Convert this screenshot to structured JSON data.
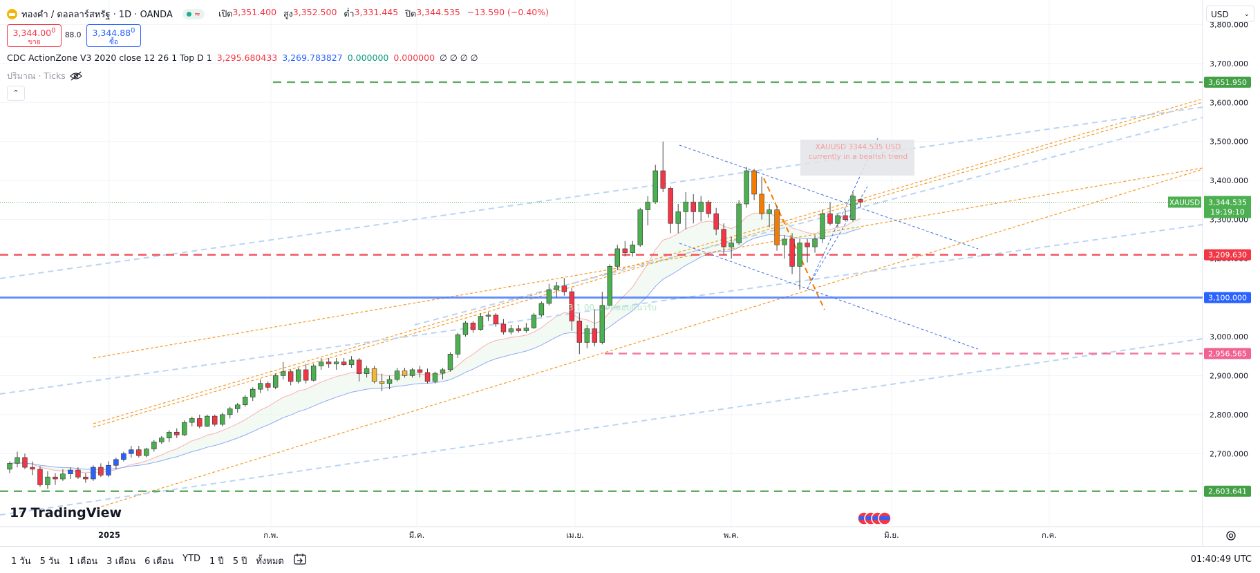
{
  "header": {
    "symbol_title": "ทองคำ / ดอลลาร์สหรัฐ · 1D · OANDA",
    "ohlc": [
      {
        "label": "เปิด",
        "value": "3,351.400"
      },
      {
        "label": "สูง",
        "value": "3,352.500"
      },
      {
        "label": "ต่ำ",
        "value": "3,331.445"
      },
      {
        "label": "ปิด",
        "value": "3,344.535"
      },
      {
        "label": "",
        "value": "−13.590 (−0.40%)"
      }
    ],
    "sell_price_main": "3,344.00",
    "sell_price_sup": "0",
    "sell_label": "ขาย",
    "spread": "88.0",
    "buy_price_main": "3,344.88",
    "buy_price_sup": "0",
    "buy_label": "ซื้อ",
    "currency": "USD"
  },
  "indicator": {
    "name": "CDC ActionZone V3 2020 close 12 26 1 Top D 1",
    "values": [
      {
        "text": "3,295.680433",
        "color": "#f23645"
      },
      {
        "text": "3,269.783827",
        "color": "#2962ff"
      },
      {
        "text": "0.000000",
        "color": "#089981"
      },
      {
        "text": "0.000000",
        "color": "#f23645"
      },
      {
        "text": "∅ ∅ ∅ ∅",
        "color": "#131722"
      }
    ]
  },
  "volume": {
    "label": "ปริมาณ · Ticks",
    "collapse": "^"
  },
  "chart_data": {
    "type": "candlestick",
    "symbol": "XAUUSD",
    "ylim": [
      2600,
      3800
    ],
    "y_ticks": [
      "2,700.000",
      "2,800.000",
      "2,900.000",
      "3,000.000",
      "3,100.000",
      "3,200.000",
      "3,300.000",
      "3,400.000",
      "3,500.000",
      "3,600.000",
      "3,700.000",
      "3,800.000"
    ],
    "x_ticks": [
      "2025",
      "ก.พ.",
      "มี.ค.",
      "เม.ย.",
      "พ.ค.",
      "มิ.ย.",
      "ก.ค."
    ],
    "candles": [
      {
        "o": 2660,
        "h": 2680,
        "l": 2650,
        "c": 2675
      },
      {
        "o": 2675,
        "h": 2705,
        "l": 2665,
        "c": 2690
      },
      {
        "o": 2690,
        "h": 2700,
        "l": 2660,
        "c": 2665
      },
      {
        "o": 2665,
        "h": 2680,
        "l": 2645,
        "c": 2660
      },
      {
        "o": 2660,
        "h": 2668,
        "l": 2615,
        "c": 2620
      },
      {
        "o": 2620,
        "h": 2655,
        "l": 2610,
        "c": 2640
      },
      {
        "o": 2640,
        "h": 2650,
        "l": 2620,
        "c": 2635
      },
      {
        "o": 2635,
        "h": 2660,
        "l": 2630,
        "c": 2648
      },
      {
        "o": 2648,
        "h": 2665,
        "l": 2635,
        "c": 2658
      },
      {
        "o": 2658,
        "h": 2665,
        "l": 2635,
        "c": 2640
      },
      {
        "o": 2640,
        "h": 2650,
        "l": 2625,
        "c": 2635
      },
      {
        "o": 2635,
        "h": 2670,
        "l": 2630,
        "c": 2665
      },
      {
        "o": 2665,
        "h": 2675,
        "l": 2640,
        "c": 2645
      },
      {
        "o": 2645,
        "h": 2680,
        "l": 2640,
        "c": 2670
      },
      {
        "o": 2670,
        "h": 2690,
        "l": 2660,
        "c": 2685
      },
      {
        "o": 2685,
        "h": 2705,
        "l": 2680,
        "c": 2700
      },
      {
        "o": 2700,
        "h": 2720,
        "l": 2690,
        "c": 2710
      },
      {
        "o": 2710,
        "h": 2720,
        "l": 2690,
        "c": 2695
      },
      {
        "o": 2695,
        "h": 2715,
        "l": 2690,
        "c": 2712
      },
      {
        "o": 2712,
        "h": 2735,
        "l": 2705,
        "c": 2730
      },
      {
        "o": 2730,
        "h": 2745,
        "l": 2725,
        "c": 2740
      },
      {
        "o": 2740,
        "h": 2760,
        "l": 2730,
        "c": 2755
      },
      {
        "o": 2755,
        "h": 2765,
        "l": 2740,
        "c": 2748
      },
      {
        "o": 2748,
        "h": 2785,
        "l": 2745,
        "c": 2780
      },
      {
        "o": 2780,
        "h": 2795,
        "l": 2770,
        "c": 2790
      },
      {
        "o": 2790,
        "h": 2800,
        "l": 2765,
        "c": 2770
      },
      {
        "o": 2770,
        "h": 2800,
        "l": 2768,
        "c": 2796
      },
      {
        "o": 2796,
        "h": 2800,
        "l": 2770,
        "c": 2775
      },
      {
        "o": 2775,
        "h": 2805,
        "l": 2770,
        "c": 2800
      },
      {
        "o": 2800,
        "h": 2820,
        "l": 2790,
        "c": 2815
      },
      {
        "o": 2815,
        "h": 2830,
        "l": 2805,
        "c": 2825
      },
      {
        "o": 2825,
        "h": 2850,
        "l": 2820,
        "c": 2845
      },
      {
        "o": 2845,
        "h": 2870,
        "l": 2835,
        "c": 2865
      },
      {
        "o": 2865,
        "h": 2890,
        "l": 2855,
        "c": 2880
      },
      {
        "o": 2880,
        "h": 2885,
        "l": 2860,
        "c": 2870
      },
      {
        "o": 2870,
        "h": 2905,
        "l": 2865,
        "c": 2900
      },
      {
        "o": 2900,
        "h": 2935,
        "l": 2890,
        "c": 2910
      },
      {
        "o": 2910,
        "h": 2915,
        "l": 2875,
        "c": 2885
      },
      {
        "o": 2885,
        "h": 2920,
        "l": 2880,
        "c": 2915
      },
      {
        "o": 2915,
        "h": 2930,
        "l": 2880,
        "c": 2888
      },
      {
        "o": 2888,
        "h": 2930,
        "l": 2885,
        "c": 2925
      },
      {
        "o": 2925,
        "h": 2945,
        "l": 2915,
        "c": 2935
      },
      {
        "o": 2935,
        "h": 2945,
        "l": 2920,
        "c": 2930
      },
      {
        "o": 2930,
        "h": 2945,
        "l": 2915,
        "c": 2935
      },
      {
        "o": 2935,
        "h": 2945,
        "l": 2925,
        "c": 2928
      },
      {
        "o": 2928,
        "h": 2950,
        "l": 2920,
        "c": 2940
      },
      {
        "o": 2940,
        "h": 2945,
        "l": 2885,
        "c": 2905
      },
      {
        "o": 2905,
        "h": 2925,
        "l": 2895,
        "c": 2918
      },
      {
        "o": 2918,
        "h": 2925,
        "l": 2880,
        "c": 2885
      },
      {
        "o": 2885,
        "h": 2905,
        "l": 2860,
        "c": 2880
      },
      {
        "o": 2880,
        "h": 2900,
        "l": 2865,
        "c": 2890
      },
      {
        "o": 2890,
        "h": 2920,
        "l": 2885,
        "c": 2912
      },
      {
        "o": 2912,
        "h": 2920,
        "l": 2895,
        "c": 2900
      },
      {
        "o": 2900,
        "h": 2920,
        "l": 2895,
        "c": 2915
      },
      {
        "o": 2915,
        "h": 2925,
        "l": 2895,
        "c": 2908
      },
      {
        "o": 2908,
        "h": 2918,
        "l": 2880,
        "c": 2885
      },
      {
        "o": 2885,
        "h": 2910,
        "l": 2880,
        "c": 2906
      },
      {
        "o": 2906,
        "h": 2920,
        "l": 2890,
        "c": 2915
      },
      {
        "o": 2915,
        "h": 2960,
        "l": 2910,
        "c": 2955
      },
      {
        "o": 2955,
        "h": 3010,
        "l": 2945,
        "c": 3005
      },
      {
        "o": 3005,
        "h": 3040,
        "l": 3000,
        "c": 3035
      },
      {
        "o": 3035,
        "h": 3040,
        "l": 3010,
        "c": 3018
      },
      {
        "o": 3018,
        "h": 3060,
        "l": 3015,
        "c": 3052
      },
      {
        "o": 3052,
        "h": 3062,
        "l": 3040,
        "c": 3055
      },
      {
        "o": 3055,
        "h": 3060,
        "l": 3025,
        "c": 3032
      },
      {
        "o": 3032,
        "h": 3045,
        "l": 3005,
        "c": 3012
      },
      {
        "o": 3012,
        "h": 3030,
        "l": 3005,
        "c": 3020
      },
      {
        "o": 3020,
        "h": 3030,
        "l": 3010,
        "c": 3015
      },
      {
        "o": 3015,
        "h": 3035,
        "l": 3010,
        "c": 3022
      },
      {
        "o": 3022,
        "h": 3060,
        "l": 3020,
        "c": 3055
      },
      {
        "o": 3055,
        "h": 3090,
        "l": 3050,
        "c": 3085
      },
      {
        "o": 3085,
        "h": 3135,
        "l": 3080,
        "c": 3120
      },
      {
        "o": 3120,
        "h": 3140,
        "l": 3100,
        "c": 3130
      },
      {
        "o": 3130,
        "h": 3150,
        "l": 3105,
        "c": 3115
      },
      {
        "o": 3115,
        "h": 3125,
        "l": 3015,
        "c": 3040
      },
      {
        "o": 3040,
        "h": 3060,
        "l": 2955,
        "c": 2985
      },
      {
        "o": 2985,
        "h": 3030,
        "l": 2970,
        "c": 3020
      },
      {
        "o": 3020,
        "h": 3070,
        "l": 2975,
        "c": 2985
      },
      {
        "o": 2985,
        "h": 3115,
        "l": 2980,
        "c": 3080
      },
      {
        "o": 3080,
        "h": 3185,
        "l": 3075,
        "c": 3180
      },
      {
        "o": 3180,
        "h": 3235,
        "l": 3170,
        "c": 3225
      },
      {
        "o": 3225,
        "h": 3245,
        "l": 3205,
        "c": 3215
      },
      {
        "o": 3215,
        "h": 3245,
        "l": 3205,
        "c": 3235
      },
      {
        "o": 3235,
        "h": 3330,
        "l": 3230,
        "c": 3325
      },
      {
        "o": 3325,
        "h": 3360,
        "l": 3285,
        "c": 3345
      },
      {
        "o": 3345,
        "h": 3440,
        "l": 3340,
        "c": 3425
      },
      {
        "o": 3425,
        "h": 3500,
        "l": 3370,
        "c": 3380
      },
      {
        "o": 3380,
        "h": 3385,
        "l": 3265,
        "c": 3290
      },
      {
        "o": 3290,
        "h": 3340,
        "l": 3265,
        "c": 3320
      },
      {
        "o": 3320,
        "h": 3370,
        "l": 3275,
        "c": 3345
      },
      {
        "o": 3345,
        "h": 3365,
        "l": 3290,
        "c": 3320
      },
      {
        "o": 3320,
        "h": 3360,
        "l": 3295,
        "c": 3345
      },
      {
        "o": 3345,
        "h": 3350,
        "l": 3305,
        "c": 3315
      },
      {
        "o": 3315,
        "h": 3330,
        "l": 3260,
        "c": 3275
      },
      {
        "o": 3275,
        "h": 3290,
        "l": 3210,
        "c": 3230
      },
      {
        "o": 3230,
        "h": 3255,
        "l": 3200,
        "c": 3240
      },
      {
        "o": 3240,
        "h": 3350,
        "l": 3235,
        "c": 3340
      },
      {
        "o": 3340,
        "h": 3435,
        "l": 3330,
        "c": 3425
      },
      {
        "o": 3425,
        "h": 3430,
        "l": 3350,
        "c": 3365
      },
      {
        "o": 3365,
        "h": 3410,
        "l": 3300,
        "c": 3315
      },
      {
        "o": 3315,
        "h": 3340,
        "l": 3280,
        "c": 3325
      },
      {
        "o": 3325,
        "h": 3335,
        "l": 3220,
        "c": 3235
      },
      {
        "o": 3235,
        "h": 3260,
        "l": 3200,
        "c": 3250
      },
      {
        "o": 3250,
        "h": 3265,
        "l": 3160,
        "c": 3180
      },
      {
        "o": 3180,
        "h": 3250,
        "l": 3120,
        "c": 3240
      },
      {
        "o": 3240,
        "h": 3250,
        "l": 3190,
        "c": 3230
      },
      {
        "o": 3230,
        "h": 3260,
        "l": 3215,
        "c": 3250
      },
      {
        "o": 3250,
        "h": 3325,
        "l": 3240,
        "c": 3315
      },
      {
        "o": 3315,
        "h": 3345,
        "l": 3285,
        "c": 3290
      },
      {
        "o": 3290,
        "h": 3315,
        "l": 3280,
        "c": 3310
      },
      {
        "o": 3310,
        "h": 3325,
        "l": 3295,
        "c": 3300
      },
      {
        "o": 3300,
        "h": 3370,
        "l": 3295,
        "c": 3360
      },
      {
        "o": 3351.4,
        "h": 3352.5,
        "l": 3331.445,
        "c": 3344.535
      }
    ],
    "horizontal_levels": [
      {
        "price": 3651.95,
        "label": "3,651.950",
        "color": "#43a047"
      },
      {
        "price": 3209.63,
        "label": "3,209.630",
        "color": "#f23645"
      },
      {
        "price": 3100.0,
        "label": "3,100.000",
        "color": "#2962ff"
      },
      {
        "price": 2956.565,
        "label": "2,956.565",
        "color": "#f06292"
      },
      {
        "price": 2603.641,
        "label": "2,603.641",
        "color": "#43a047"
      }
    ],
    "last_price": {
      "symbol": "XAUUSD",
      "price": "3,344.535",
      "countdown": "19:19:10"
    }
  },
  "annotations": {
    "note_text_1": "XAUUSD 3344.535 USD",
    "note_text_2": "currently in a bearish trend",
    "faded_note": "3,1 00... ทดสอบแนวรับ"
  },
  "branding": {
    "logo_text": "TradingView"
  },
  "timeframes": [
    "1 วัน",
    "5 วัน",
    "1 เดือน",
    "3 เดือน",
    "6 เดือน",
    "YTD",
    "1 ปี",
    "5 ปี",
    "ทั้งหมด"
  ],
  "clock": "01:40:49 UTC",
  "colors": {
    "up": "#4caf50",
    "down": "#f23645",
    "neutral_up": "#f0b73a"
  }
}
